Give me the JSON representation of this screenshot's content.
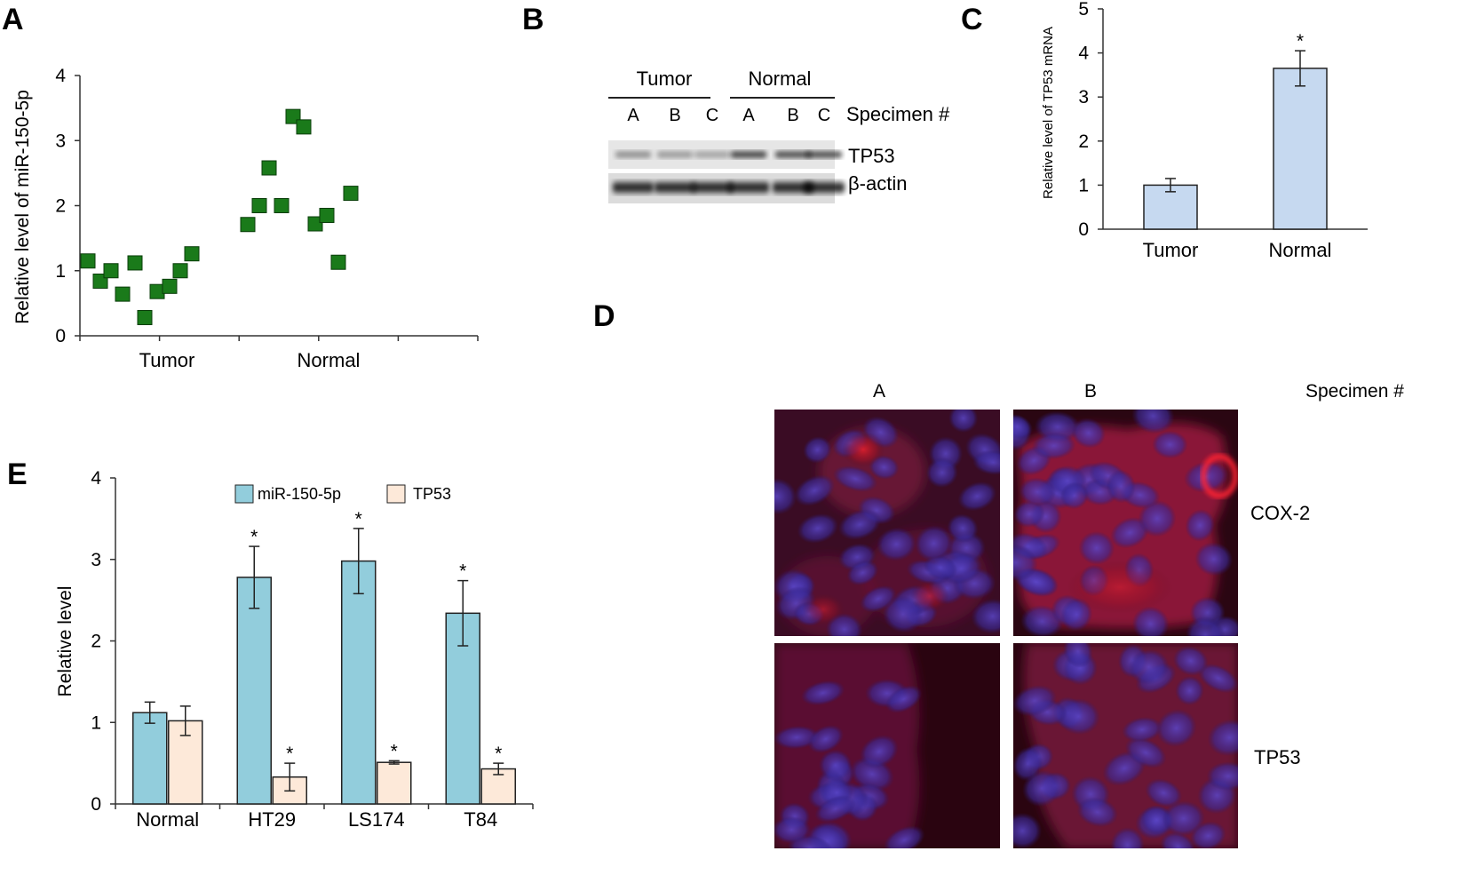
{
  "panel_labels": [
    "A",
    "B",
    "C",
    "D",
    "E"
  ],
  "colors": {
    "scatter_marker": "#1a7a1a",
    "scatter_marker_edge": "#0a3d0a",
    "bar_c": "#c6d9f0",
    "mir": "#92cddc",
    "tp53": "#fde9d9",
    "nuclei": "#3a2a8a",
    "cox2_stain": "#cc1020"
  },
  "chart_data": [
    {
      "panel": "A",
      "type": "scatter",
      "ylabel": "Relative level of miR-150-5p",
      "ylim": [
        0,
        4
      ],
      "yticks": [
        "0",
        "1",
        "2",
        "3",
        "4"
      ],
      "categories": [
        "Tumor",
        "Normal"
      ],
      "series": [
        {
          "category": "Tumor",
          "values": [
            1.15,
            0.84,
            1.0,
            0.64,
            1.12,
            0.28,
            0.68,
            0.76,
            1.0,
            1.26
          ]
        },
        {
          "category": "Normal",
          "values": [
            1.71,
            2.0,
            2.58,
            2.0,
            3.37,
            3.21,
            1.72,
            1.85,
            1.13,
            2.19
          ]
        }
      ]
    },
    {
      "panel": "B",
      "type": "western-blot",
      "groups": [
        "Tumor",
        "Normal"
      ],
      "lanes": [
        "A",
        "B",
        "C",
        "A",
        "B",
        "C"
      ],
      "lane_header": "Specimen #",
      "bands": [
        {
          "label": "TP53",
          "intensity": [
            0.45,
            0.4,
            0.35,
            0.85,
            0.8,
            0.8
          ]
        },
        {
          "label": "β-actin",
          "intensity": [
            0.95,
            0.95,
            0.95,
            0.95,
            0.95,
            0.95
          ]
        }
      ]
    },
    {
      "panel": "C",
      "type": "bar",
      "ylabel": "Relative level of TP53 mRNA",
      "ylim": [
        0,
        5
      ],
      "yticks": [
        "0",
        "1",
        "2",
        "3",
        "4",
        "5"
      ],
      "categories": [
        "Tumor",
        "Normal"
      ],
      "values": [
        1.0,
        3.65
      ],
      "errors": [
        0.15,
        0.4
      ],
      "significance": [
        "",
        "*"
      ]
    },
    {
      "panel": "E",
      "type": "bar",
      "ylabel": "Relative level",
      "ylim": [
        0,
        4
      ],
      "yticks": [
        "0",
        "1",
        "2",
        "3",
        "4"
      ],
      "categories": [
        "Normal",
        "HT29",
        "LS174",
        "T84"
      ],
      "series": [
        {
          "name": "miR-150-5p",
          "values": [
            1.12,
            2.78,
            2.98,
            2.34
          ],
          "errors": [
            0.13,
            0.38,
            0.4,
            0.4
          ],
          "significance": [
            "",
            "*",
            "*",
            "*"
          ]
        },
        {
          "name": "TP53",
          "values": [
            1.02,
            0.33,
            0.51,
            0.43
          ],
          "errors": [
            0.18,
            0.17,
            0.02,
            0.07
          ],
          "significance": [
            "",
            "*",
            "*",
            "*"
          ]
        }
      ]
    }
  ],
  "panel_d": {
    "columns": [
      "A",
      "B"
    ],
    "column_header": "Specimen #",
    "rows": [
      "COX-2",
      "TP53"
    ]
  }
}
